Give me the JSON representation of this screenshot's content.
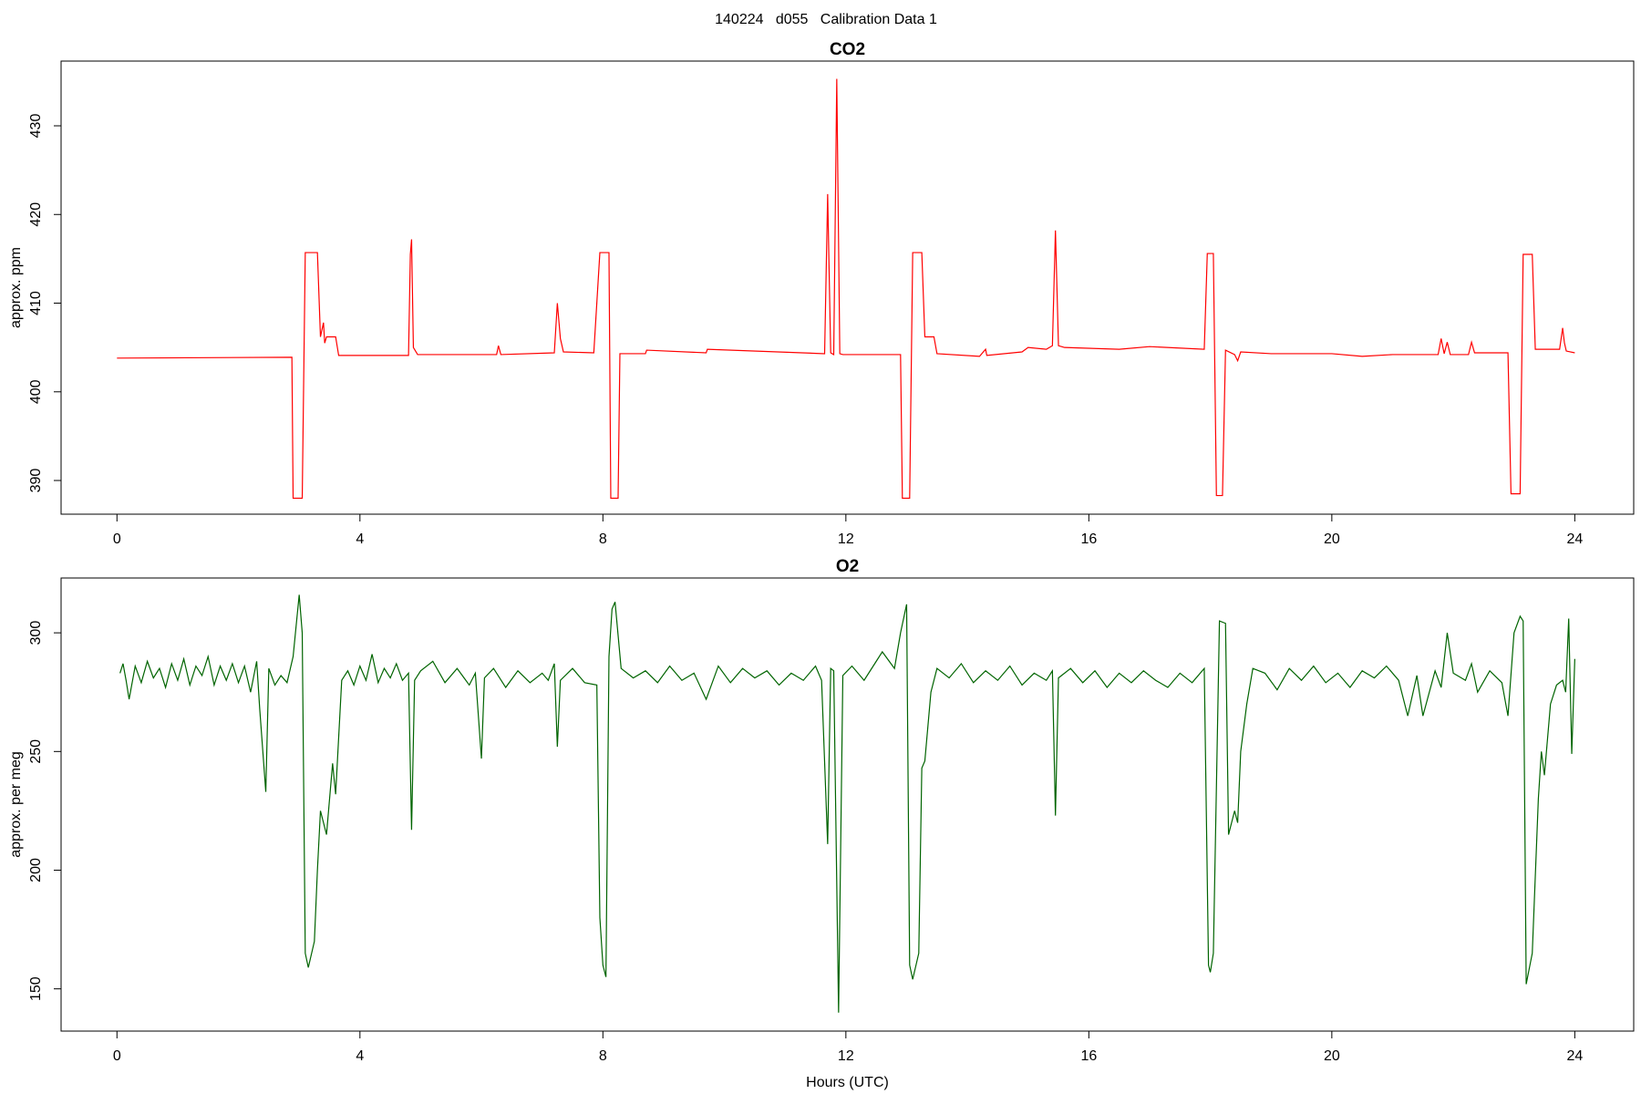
{
  "title": "140224   d055   Calibration Data 1",
  "chart_data": [
    {
      "type": "line",
      "title": "CO2",
      "ylabel": "approx. ppm",
      "color": "#ff0000",
      "xlim": [
        -0.92,
        24.97
      ],
      "ylim": [
        386.2,
        437.3
      ],
      "xticks": [
        0,
        4,
        8,
        12,
        16,
        20,
        24
      ],
      "yticks": [
        390,
        400,
        410,
        420,
        430
      ],
      "x": [
        0.0,
        2.88,
        2.9,
        3.05,
        3.1,
        3.3,
        3.35,
        3.4,
        3.42,
        3.45,
        3.6,
        3.65,
        4.8,
        4.83,
        4.85,
        4.88,
        4.95,
        6.25,
        6.28,
        6.32,
        7.2,
        7.25,
        7.3,
        7.35,
        7.85,
        7.95,
        8.1,
        8.13,
        8.25,
        8.28,
        8.7,
        8.72,
        9.7,
        9.72,
        11.65,
        11.7,
        11.75,
        11.8,
        11.85,
        11.9,
        11.95,
        12.9,
        12.93,
        13.05,
        13.1,
        13.25,
        13.3,
        13.45,
        13.5,
        14.2,
        14.3,
        14.32,
        14.9,
        15.0,
        15.3,
        15.4,
        15.45,
        15.5,
        15.6,
        16.5,
        17.0,
        17.9,
        17.95,
        18.05,
        18.1,
        18.2,
        18.25,
        18.4,
        18.45,
        18.5,
        19.0,
        20.0,
        20.5,
        21.0,
        21.75,
        21.8,
        21.85,
        21.9,
        21.95,
        22.25,
        22.3,
        22.35,
        22.9,
        22.95,
        23.1,
        23.15,
        23.3,
        23.35,
        23.75,
        23.8,
        23.83,
        23.86,
        24.0
      ],
      "values": [
        403.8,
        403.9,
        388,
        388,
        415.7,
        415.7,
        406.2,
        407.8,
        405.5,
        406.2,
        406.2,
        404.1,
        404.1,
        415.5,
        417.2,
        405,
        404.2,
        404.2,
        405.2,
        404.2,
        404.4,
        410,
        406,
        404.5,
        404.4,
        415.7,
        415.7,
        388,
        388,
        404.3,
        404.3,
        404.7,
        404.4,
        404.8,
        404.3,
        422.3,
        404.4,
        404.2,
        435.3,
        404.3,
        404.2,
        404.2,
        388,
        388,
        415.7,
        415.7,
        406.2,
        406.2,
        404.3,
        404,
        404.8,
        404.1,
        404.5,
        405,
        404.8,
        405.2,
        418.2,
        405.2,
        405,
        404.8,
        405.1,
        404.8,
        415.6,
        415.6,
        388.3,
        388.3,
        404.7,
        404.2,
        403.5,
        404.5,
        404.3,
        404.3,
        404,
        404.2,
        404.2,
        406,
        404.3,
        405.6,
        404.2,
        404.2,
        405.6,
        404.4,
        404.4,
        388.5,
        388.5,
        415.5,
        415.5,
        404.8,
        404.8,
        407.2,
        405.5,
        404.6,
        404.4
      ]
    },
    {
      "type": "line",
      "title": "O2",
      "ylabel": "approx. per meg",
      "xlabel": "Hours (UTC)",
      "color": "#006400",
      "xlim": [
        -0.92,
        24.97
      ],
      "ylim": [
        132.2,
        323.1
      ],
      "xticks": [
        0,
        4,
        8,
        12,
        16,
        20,
        24
      ],
      "yticks": [
        150,
        200,
        250,
        300
      ],
      "x": [
        0.05,
        0.1,
        0.15,
        0.2,
        0.3,
        0.4,
        0.5,
        0.6,
        0.7,
        0.8,
        0.9,
        1.0,
        1.1,
        1.2,
        1.3,
        1.4,
        1.5,
        1.6,
        1.7,
        1.8,
        1.9,
        2.0,
        2.1,
        2.2,
        2.3,
        2.35,
        2.45,
        2.5,
        2.6,
        2.7,
        2.8,
        2.9,
        3.0,
        3.05,
        3.1,
        3.15,
        3.25,
        3.3,
        3.35,
        3.45,
        3.55,
        3.6,
        3.7,
        3.8,
        3.9,
        4.0,
        4.1,
        4.2,
        4.3,
        4.4,
        4.5,
        4.6,
        4.7,
        4.8,
        4.85,
        4.9,
        5.0,
        5.2,
        5.4,
        5.6,
        5.8,
        5.9,
        6.0,
        6.05,
        6.2,
        6.4,
        6.6,
        6.8,
        7.0,
        7.1,
        7.2,
        7.25,
        7.3,
        7.5,
        7.7,
        7.9,
        7.95,
        8.0,
        8.05,
        8.1,
        8.15,
        8.2,
        8.3,
        8.5,
        8.7,
        8.9,
        9.1,
        9.3,
        9.5,
        9.7,
        9.9,
        10.1,
        10.3,
        10.5,
        10.7,
        10.9,
        11.1,
        11.3,
        11.5,
        11.6,
        11.7,
        11.75,
        11.8,
        11.88,
        11.95,
        12.1,
        12.3,
        12.5,
        12.6,
        12.8,
        12.9,
        13.0,
        13.05,
        13.1,
        13.2,
        13.25,
        13.3,
        13.4,
        13.5,
        13.7,
        13.9,
        14.1,
        14.3,
        14.5,
        14.7,
        14.9,
        15.1,
        15.3,
        15.4,
        15.45,
        15.5,
        15.7,
        15.9,
        16.1,
        16.3,
        16.5,
        16.7,
        16.9,
        17.1,
        17.3,
        17.5,
        17.7,
        17.9,
        17.97,
        18.0,
        18.05,
        18.15,
        18.25,
        18.3,
        18.4,
        18.45,
        18.5,
        18.6,
        18.7,
        18.9,
        19.1,
        19.3,
        19.5,
        19.7,
        19.9,
        20.1,
        20.3,
        20.5,
        20.7,
        20.9,
        21.1,
        21.25,
        21.4,
        21.5,
        21.7,
        21.8,
        21.9,
        22.0,
        22.2,
        22.3,
        22.4,
        22.6,
        22.8,
        22.9,
        23.0,
        23.1,
        23.15,
        23.2,
        23.3,
        23.4,
        23.45,
        23.5,
        23.6,
        23.7,
        23.8,
        23.85,
        23.9,
        23.95,
        24.0
      ],
      "values": [
        283,
        287,
        280,
        272,
        286,
        279,
        288,
        281,
        285,
        277,
        287,
        280,
        289,
        278,
        286,
        282,
        290,
        278,
        286,
        280,
        287,
        279,
        286,
        275,
        288,
        268,
        233,
        285,
        278,
        282,
        279,
        290,
        316,
        300,
        165,
        159,
        170,
        200,
        225,
        215,
        245,
        232,
        280,
        284,
        278,
        286,
        280,
        291,
        279,
        285,
        281,
        287,
        280,
        283,
        217,
        280,
        284,
        288,
        279,
        285,
        278,
        283,
        247,
        281,
        285,
        277,
        284,
        279,
        283,
        280,
        287,
        252,
        280,
        285,
        279,
        278,
        180,
        160,
        155,
        290,
        310,
        313,
        285,
        281,
        284,
        279,
        286,
        280,
        283,
        272,
        286,
        279,
        285,
        281,
        284,
        278,
        283,
        280,
        286,
        280,
        211,
        285,
        284,
        140,
        282,
        286,
        280,
        288,
        292,
        285,
        300,
        312,
        160,
        154,
        165,
        243,
        246,
        275,
        285,
        281,
        287,
        279,
        284,
        280,
        286,
        278,
        283,
        280,
        284,
        223,
        281,
        285,
        279,
        284,
        277,
        283,
        279,
        284,
        280,
        277,
        283,
        279,
        285,
        160,
        157,
        165,
        305,
        304,
        215,
        225,
        220,
        250,
        270,
        285,
        283,
        276,
        285,
        280,
        286,
        279,
        283,
        277,
        284,
        281,
        286,
        280,
        265,
        282,
        265,
        284,
        277,
        300,
        283,
        280,
        287,
        275,
        284,
        279,
        265,
        300,
        307,
        305,
        152,
        165,
        230,
        250,
        240,
        270,
        278,
        280,
        275,
        306,
        249,
        289
      ]
    }
  ]
}
